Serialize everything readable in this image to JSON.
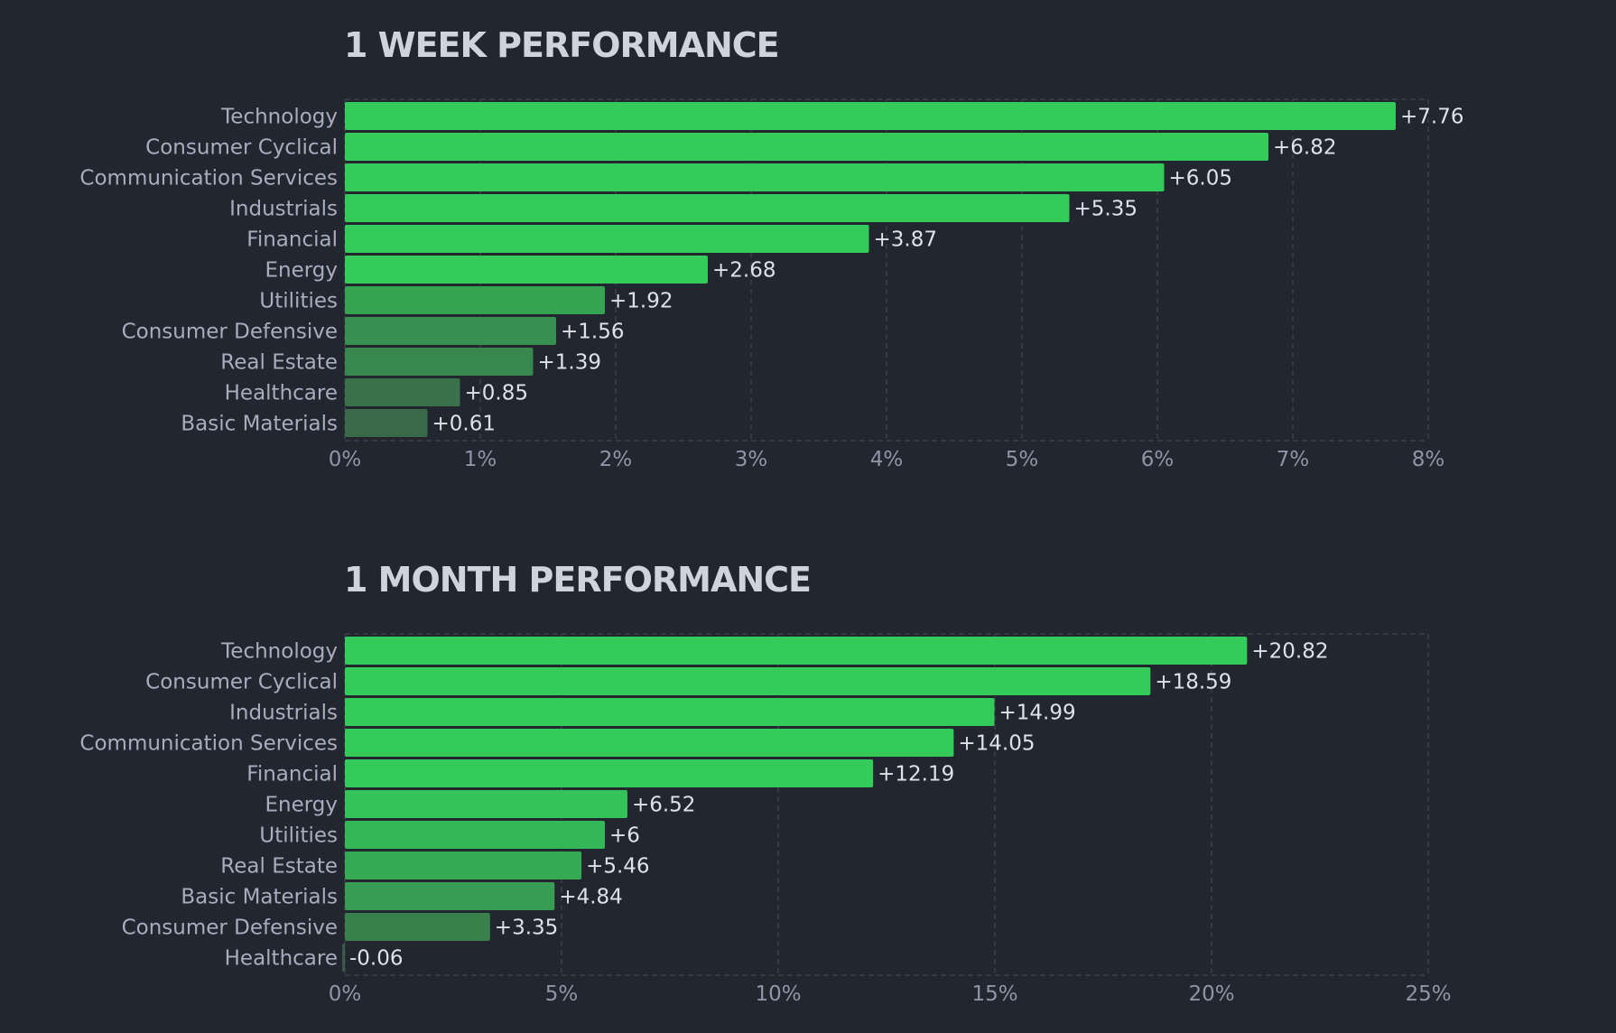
{
  "charts": {
    "week": {
      "title": "1 WEEK PERFORMANCE"
    },
    "month": {
      "title": "1 MONTH PERFORMANCE"
    }
  },
  "colors": {
    "background": "#22262f",
    "bar_strong": "#33cc5a",
    "bar_weak": "#3a5e47",
    "grid": "#3a3f4b"
  },
  "chart_data": [
    {
      "type": "bar",
      "orientation": "horizontal",
      "title": "1 WEEK PERFORMANCE",
      "categories": [
        "Technology",
        "Consumer Cyclical",
        "Communication Services",
        "Industrials",
        "Financial",
        "Energy",
        "Utilities",
        "Consumer Defensive",
        "Real Estate",
        "Healthcare",
        "Basic Materials"
      ],
      "values": [
        7.76,
        6.82,
        6.05,
        5.35,
        3.87,
        2.68,
        1.92,
        1.56,
        1.39,
        0.85,
        0.61
      ],
      "value_labels": [
        "+7.76",
        "+6.82",
        "+6.05",
        "+5.35",
        "+3.87",
        "+2.68",
        "+1.92",
        "+1.56",
        "+1.39",
        "+0.85",
        "+0.61"
      ],
      "xlim": [
        0,
        8
      ],
      "xticks": [
        0,
        1,
        2,
        3,
        4,
        5,
        6,
        7,
        8
      ],
      "xtick_labels": [
        "0%",
        "1%",
        "2%",
        "3%",
        "4%",
        "5%",
        "6%",
        "7%",
        "8%"
      ],
      "grid": true
    },
    {
      "type": "bar",
      "orientation": "horizontal",
      "title": "1 MONTH PERFORMANCE",
      "categories": [
        "Technology",
        "Consumer Cyclical",
        "Industrials",
        "Communication Services",
        "Financial",
        "Energy",
        "Utilities",
        "Real Estate",
        "Basic Materials",
        "Consumer Defensive",
        "Healthcare"
      ],
      "values": [
        20.82,
        18.59,
        14.99,
        14.05,
        12.19,
        6.52,
        6,
        5.46,
        4.84,
        3.35,
        -0.06
      ],
      "value_labels": [
        "+20.82",
        "+18.59",
        "+14.99",
        "+14.05",
        "+12.19",
        "+6.52",
        "+6",
        "+5.46",
        "+4.84",
        "+3.35",
        "-0.06"
      ],
      "xlim": [
        0,
        25
      ],
      "xticks": [
        0,
        5,
        10,
        15,
        20,
        25
      ],
      "xtick_labels": [
        "0%",
        "5%",
        "10%",
        "15%",
        "20%",
        "25%"
      ],
      "grid": true
    }
  ]
}
